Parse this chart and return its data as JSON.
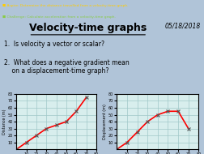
{
  "title": "Velocity-time graphs",
  "date": "05/18/2018",
  "bg_color": "#b0c4d8",
  "objectives": [
    "1.  Is velocity a vector or scalar?",
    "2.  What does a negative gradient mean\n    on a displacement-time graph?"
  ],
  "aspire_label": "■ Aspire: ",
  "aspire_text": "Determine the distance travelled from a velocity-time graph.",
  "challenge_label": "■ Challenge: ",
  "challenge_text": "Calculate acceleration from a velocity-time graph.",
  "banner_bg": "#1a1a2e",
  "aspire_color": "#ffcc00",
  "challenge_color": "#88cc44",
  "graph1": {
    "xlabel": "Time ( s )",
    "ylabel": "Distance (m)",
    "xlim": [
      0,
      80
    ],
    "ylim": [
      0,
      80
    ],
    "xticks": [
      10,
      20,
      30,
      40,
      50,
      60,
      70,
      80
    ],
    "yticks": [
      10,
      20,
      30,
      40,
      50,
      60,
      70,
      80
    ],
    "line_x": [
      0,
      10,
      20,
      30,
      40,
      50,
      60,
      70
    ],
    "line_y": [
      0,
      10,
      20,
      30,
      35,
      40,
      55,
      75
    ],
    "line_color": "#ff0000",
    "marker": "x",
    "marker_color": "#555555",
    "grid_color": "#a0c8c8",
    "face_color": "#d8eeed"
  },
  "graph2": {
    "xlabel": "Time ( s )",
    "ylabel": "Displacement (m)",
    "xlim": [
      0,
      80
    ],
    "ylim": [
      0,
      80
    ],
    "xticks": [
      10,
      20,
      30,
      40,
      50,
      60,
      70,
      80
    ],
    "yticks": [
      10,
      20,
      30,
      40,
      50,
      60,
      70,
      80
    ],
    "line_x": [
      0,
      10,
      20,
      30,
      40,
      50,
      60,
      70
    ],
    "line_y": [
      0,
      10,
      25,
      40,
      50,
      55,
      55,
      30
    ],
    "line_color": "#ff0000",
    "marker": "x",
    "marker_color": "#555555",
    "grid_color": "#a0c8c8",
    "face_color": "#d8eeed"
  }
}
